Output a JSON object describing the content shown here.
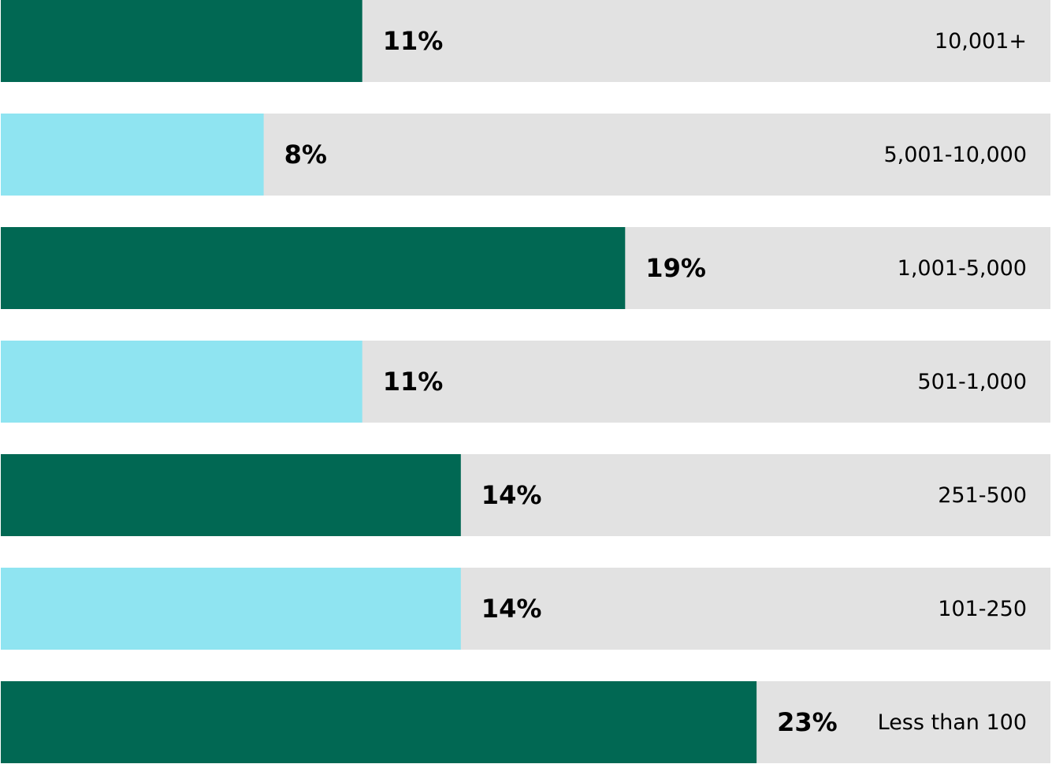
{
  "colors": {
    "dark": "#016853",
    "light": "#8fe4f1",
    "track": "#e2e2e2"
  },
  "chart_data": {
    "type": "bar",
    "orientation": "horizontal",
    "xlim": [
      0,
      32
    ],
    "grid": false,
    "categories": [
      "10,001+",
      "5,001-10,000",
      "1,001-5,000",
      "501-1,000",
      "251-500",
      "101-250",
      "Less than 100"
    ],
    "values": [
      11,
      8,
      19,
      11,
      14,
      14,
      23
    ],
    "value_labels": [
      "11%",
      "8%",
      "19%",
      "11%",
      "14%",
      "14%",
      "23%"
    ],
    "bar_colors": [
      "#016853",
      "#8fe4f1",
      "#016853",
      "#8fe4f1",
      "#016853",
      "#8fe4f1",
      "#016853"
    ],
    "unit": "%"
  }
}
